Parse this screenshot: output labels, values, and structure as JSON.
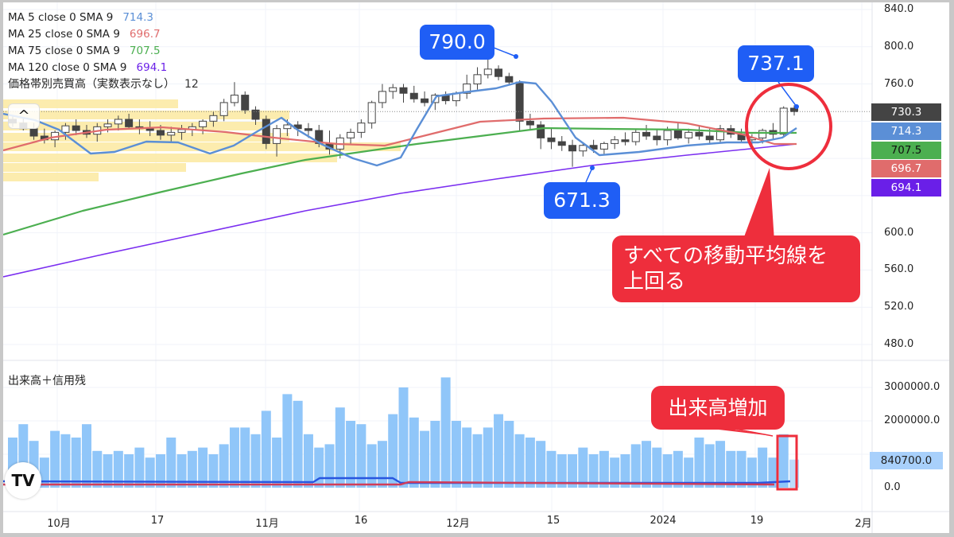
{
  "legend": {
    "ma5": {
      "label": "MA 5 close 0 SMA 9",
      "value": "714.3",
      "color": "#5b8fd6"
    },
    "ma25": {
      "label": "MA 25 close 0 SMA 9",
      "value": "696.7",
      "color": "#e06c6c"
    },
    "ma75": {
      "label": "MA 75 close 0 SMA 9",
      "value": "707.5",
      "color": "#4caf50"
    },
    "ma120": {
      "label": "MA 120 close 0 SMA 9",
      "value": "694.1",
      "color": "#6a1fe8"
    },
    "volume_profile": {
      "label": "価格帯別売買高（実数表示なし）",
      "value": "12"
    }
  },
  "price_axis": {
    "ticks": [
      "840.0",
      "800.0",
      "760.0",
      "600.0",
      "560.0",
      "520.0",
      "480.0"
    ],
    "tags": [
      {
        "name": "last-price",
        "value": "730.3",
        "bg": "#444444",
        "fg": "#ffffff"
      },
      {
        "name": "ma5",
        "value": "714.3",
        "bg": "#5b8fd6",
        "fg": "#ffffff"
      },
      {
        "name": "ma75",
        "value": "707.5",
        "bg": "#4caf50",
        "fg": "#111111"
      },
      {
        "name": "ma25",
        "value": "696.7",
        "bg": "#e06c6c",
        "fg": "#ffffff"
      },
      {
        "name": "ma120",
        "value": "694.1",
        "bg": "#6a1fe8",
        "fg": "#ffffff"
      }
    ]
  },
  "volume_pane": {
    "title": "出来高＋信用残",
    "ticks": [
      "3000000.0",
      "2000000.0",
      "0.0"
    ],
    "last_tag": "840700.0"
  },
  "time_axis": {
    "labels": [
      "10月",
      "17",
      "11月",
      "16",
      "12月",
      "15",
      "2024",
      "19",
      "2月"
    ]
  },
  "annotations": {
    "high": "790.0",
    "low": "671.3",
    "latest_high": "737.1",
    "ma_break": "すべての移動平均線を上回る",
    "ma_break_line1": "すべての移動平均線を",
    "ma_break_line2": "上回る",
    "volume_increase": "出来高増加"
  },
  "logo": {
    "text": "TV"
  },
  "collapse_button": {
    "icon": "^"
  },
  "chart_data": {
    "type": "candlestick",
    "title": "",
    "xlabel": "",
    "ylabel": "",
    "ylim": [
      470,
      845
    ],
    "x_ticks": [
      "10月",
      "17",
      "11月",
      "16",
      "12月",
      "15",
      "2024",
      "19",
      "2月"
    ],
    "annotations": {
      "high": 790.0,
      "low": 671.3,
      "latest_high": 737.1,
      "last_close": 730.3
    },
    "moving_averages": [
      {
        "name": "MA 5",
        "last": 714.3,
        "color": "#5b8fd6"
      },
      {
        "name": "MA 25",
        "last": 696.7,
        "color": "#e06c6c"
      },
      {
        "name": "MA 75",
        "last": 707.5,
        "color": "#4caf50"
      },
      {
        "name": "MA 120",
        "last": 694.1,
        "color": "#6a1fe8"
      }
    ],
    "candles": [
      [
        722,
        726,
        714,
        718
      ],
      [
        718,
        724,
        710,
        712
      ],
      [
        712,
        718,
        700,
        704
      ],
      [
        704,
        712,
        696,
        700
      ],
      [
        700,
        710,
        692,
        708
      ],
      [
        708,
        718,
        700,
        715
      ],
      [
        715,
        722,
        705,
        710
      ],
      [
        710,
        716,
        702,
        706
      ],
      [
        706,
        718,
        698,
        714
      ],
      [
        714,
        722,
        708,
        717
      ],
      [
        717,
        726,
        710,
        722
      ],
      [
        722,
        728,
        712,
        714
      ],
      [
        714,
        722,
        706,
        712
      ],
      [
        712,
        720,
        704,
        710
      ],
      [
        710,
        716,
        700,
        705
      ],
      [
        705,
        714,
        698,
        708
      ],
      [
        708,
        716,
        700,
        711
      ],
      [
        711,
        718,
        704,
        714
      ],
      [
        714,
        722,
        706,
        720
      ],
      [
        720,
        730,
        714,
        726
      ],
      [
        726,
        744,
        720,
        740
      ],
      [
        740,
        762,
        736,
        748
      ],
      [
        748,
        752,
        728,
        732
      ],
      [
        732,
        736,
        716,
        722
      ],
      [
        722,
        726,
        690,
        696
      ],
      [
        696,
        716,
        682,
        712
      ],
      [
        712,
        722,
        704,
        716
      ],
      [
        716,
        720,
        704,
        712
      ],
      [
        712,
        718,
        702,
        710
      ],
      [
        710,
        716,
        692,
        696
      ],
      [
        696,
        710,
        684,
        690
      ],
      [
        690,
        706,
        680,
        702
      ],
      [
        702,
        712,
        696,
        708
      ],
      [
        708,
        722,
        702,
        718
      ],
      [
        718,
        742,
        712,
        740
      ],
      [
        740,
        760,
        734,
        752
      ],
      [
        752,
        760,
        744,
        756
      ],
      [
        756,
        760,
        740,
        750
      ],
      [
        750,
        758,
        740,
        744
      ],
      [
        744,
        752,
        736,
        740
      ],
      [
        740,
        750,
        732,
        748
      ],
      [
        748,
        752,
        738,
        742
      ],
      [
        742,
        752,
        736,
        750
      ],
      [
        750,
        770,
        744,
        760
      ],
      [
        760,
        778,
        754,
        770
      ],
      [
        770,
        790,
        766,
        776
      ],
      [
        776,
        780,
        764,
        768
      ],
      [
        768,
        772,
        760,
        762
      ],
      [
        762,
        764,
        710,
        720
      ],
      [
        720,
        728,
        710,
        716
      ],
      [
        716,
        720,
        690,
        702
      ],
      [
        702,
        712,
        690,
        698
      ],
      [
        698,
        704,
        688,
        694
      ],
      [
        694,
        700,
        671,
        688
      ],
      [
        688,
        696,
        682,
        694
      ],
      [
        694,
        700,
        686,
        690
      ],
      [
        690,
        698,
        684,
        696
      ],
      [
        696,
        704,
        690,
        700
      ],
      [
        700,
        708,
        694,
        698
      ],
      [
        698,
        712,
        694,
        708
      ],
      [
        708,
        716,
        700,
        704
      ],
      [
        704,
        712,
        694,
        700
      ],
      [
        700,
        714,
        694,
        710
      ],
      [
        710,
        718,
        700,
        702
      ],
      [
        702,
        712,
        696,
        708
      ],
      [
        708,
        716,
        700,
        704
      ],
      [
        704,
        712,
        696,
        700
      ],
      [
        700,
        716,
        696,
        712
      ],
      [
        712,
        716,
        702,
        706
      ],
      [
        706,
        712,
        698,
        700
      ],
      [
        700,
        706,
        694,
        702
      ],
      [
        702,
        712,
        696,
        710
      ],
      [
        710,
        718,
        700,
        706
      ],
      [
        706,
        736,
        704,
        734
      ],
      [
        734,
        737.1,
        726,
        730.3
      ]
    ],
    "volume": [
      1500000,
      1900000,
      1400000,
      900000,
      1700000,
      1600000,
      1500000,
      1900000,
      1100000,
      1000000,
      1100000,
      1000000,
      1200000,
      900000,
      1000000,
      1500000,
      1000000,
      1100000,
      1200000,
      1000000,
      1300000,
      1800000,
      1800000,
      1600000,
      2300000,
      1500000,
      2800000,
      2600000,
      1600000,
      1200000,
      1300000,
      2400000,
      2000000,
      1900000,
      1300000,
      1400000,
      2200000,
      3000000,
      2100000,
      1700000,
      2000000,
      3300000,
      2000000,
      1800000,
      1600000,
      1800000,
      2200000,
      2000000,
      1600000,
      1500000,
      1400000,
      1100000,
      1000000,
      1000000,
      1200000,
      1000000,
      1100000,
      900000,
      1000000,
      1300000,
      1400000,
      1200000,
      1000000,
      1100000,
      900000,
      1500000,
      1300000,
      1400000,
      1100000,
      1100000,
      900000,
      1200000,
      900000,
      1600000,
      840700
    ],
    "credit_buy_line": "blue ≈ 200000-300000",
    "credit_sell_line": "red ≈ 100000"
  }
}
